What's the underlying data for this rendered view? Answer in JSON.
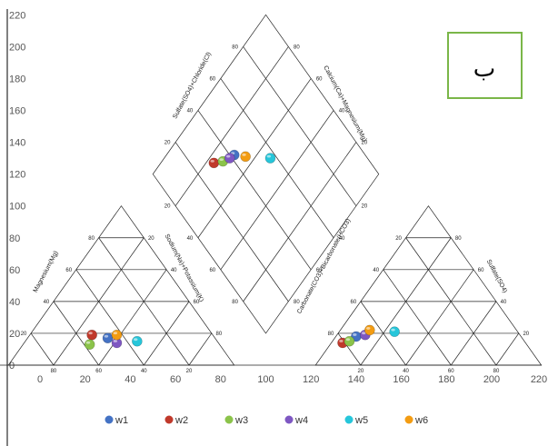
{
  "chart_data": {
    "type": "scatter",
    "subtype": "piper-diagram",
    "x_ticks": [
      "0",
      "20",
      "40",
      "60",
      "80",
      "100",
      "120",
      "140",
      "160",
      "180",
      "200",
      "220"
    ],
    "y_ticks": [
      "0",
      "20",
      "40",
      "60",
      "80",
      "100",
      "120",
      "140",
      "160",
      "180",
      "200",
      "220"
    ],
    "xlim": [
      0,
      220
    ],
    "ylim": [
      0,
      220
    ],
    "badge": "ب",
    "axis_titles": {
      "cation_left": "Magnesium(Mg)",
      "cation_right": "Sodium(Na)+Potassium(K)",
      "anion_left": "Carbonate(CO3)+Bicarbonate(HCO3)",
      "anion_right": "Sulfate(SO4)",
      "diamond_left": "Sulfate(SO4)+Chloride(Cl)",
      "diamond_right": "Calcium(Ca)+Magnesium(Mg)"
    },
    "triangle_labels": {
      "cation_left_side": [
        "80",
        "60",
        "40",
        "20"
      ],
      "cation_right_side": [
        "20",
        "40",
        "60",
        "80"
      ],
      "cation_base": [
        "80",
        "60",
        "40",
        "20"
      ],
      "anion_left_side": [
        "20",
        "40",
        "60",
        "80"
      ],
      "anion_right_side": [
        "80",
        "60",
        "40",
        "20"
      ],
      "anion_base": [
        "20",
        "40",
        "60",
        "80"
      ],
      "diamond_upper_left": [
        "80",
        "60",
        "40",
        "20"
      ],
      "diamond_upper_right": [
        "80",
        "60",
        "40",
        "20"
      ],
      "diamond_lower_left": [
        "20",
        "40",
        "60",
        "80"
      ],
      "diamond_lower_right": [
        "20",
        "40",
        "60",
        "80"
      ]
    },
    "series": [
      {
        "name": "w1",
        "color": "#4472c4",
        "cation": [
          30,
          17
        ],
        "anion": [
          140,
          18
        ],
        "diamond": [
          86,
          132
        ]
      },
      {
        "name": "w2",
        "color": "#c0392b",
        "cation": [
          23,
          19
        ],
        "anion": [
          134,
          14
        ],
        "diamond": [
          77,
          127
        ]
      },
      {
        "name": "w3",
        "color": "#8bc34a",
        "cation": [
          22,
          13
        ],
        "anion": [
          137,
          15
        ],
        "diamond": [
          81,
          128
        ]
      },
      {
        "name": "w4",
        "color": "#7e57c2",
        "cation": [
          34,
          14
        ],
        "anion": [
          144,
          19
        ],
        "diamond": [
          84,
          130
        ]
      },
      {
        "name": "w5",
        "color": "#26c6da",
        "cation": [
          43,
          15
        ],
        "anion": [
          157,
          21
        ],
        "diamond": [
          102,
          130
        ]
      },
      {
        "name": "w6",
        "color": "#f39c12",
        "cation": [
          34,
          19
        ],
        "anion": [
          146,
          22
        ],
        "diamond": [
          91,
          131
        ]
      }
    ]
  }
}
